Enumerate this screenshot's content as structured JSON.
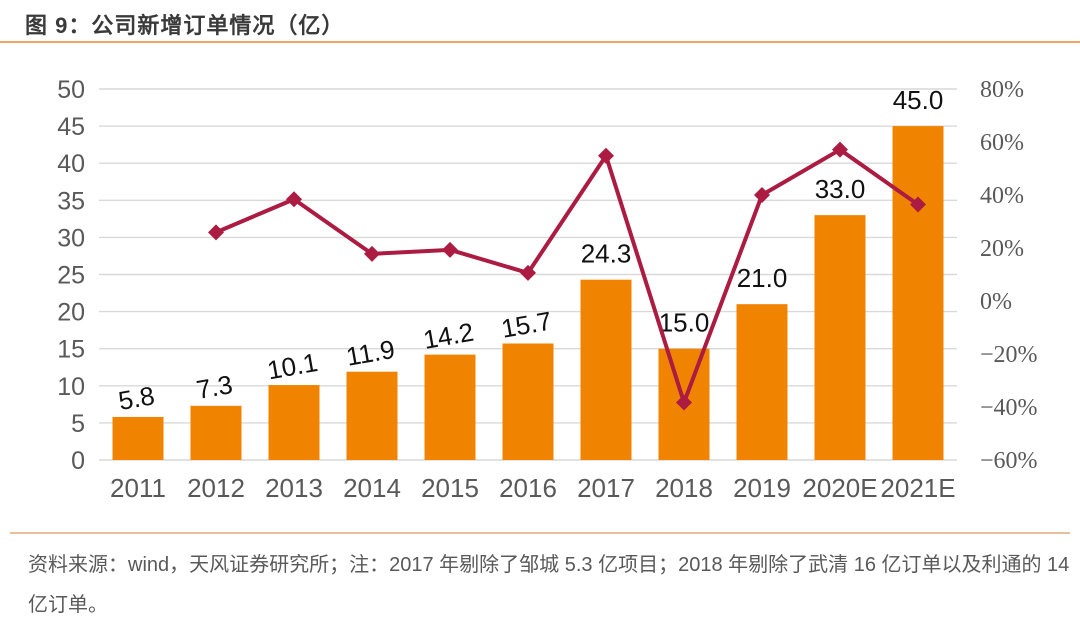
{
  "header": {
    "title": "图 9：公司新增订单情况（亿）"
  },
  "footer": {
    "line1": "资料来源：wind，天风证券研究所；注：2017 年剔除了邹城 5.3 亿项目；2018 年剔除了武清 16 亿订单以及利通的 14",
    "line2": "亿订单。"
  },
  "chart_data": {
    "type": "bar",
    "title": "图 9：公司新增订单情况（亿）",
    "categories": [
      "2011",
      "2012",
      "2013",
      "2014",
      "2015",
      "2016",
      "2017",
      "2018",
      "2019",
      "2020E",
      "2021E"
    ],
    "series": [
      {
        "type": "bar",
        "axis": "left",
        "values": [
          5.8,
          7.3,
          10.1,
          11.9,
          14.2,
          15.7,
          24.3,
          15.0,
          21.0,
          33.0,
          45.0
        ],
        "color": "#F08300"
      },
      {
        "type": "line",
        "axis": "right",
        "values": [
          null,
          25.9,
          38.4,
          17.8,
          19.3,
          10.6,
          54.8,
          -38.3,
          40.0,
          57.1,
          36.4
        ],
        "color": "#AC1B41"
      }
    ],
    "left_axis": {
      "min": 0,
      "max": 50,
      "step": 5,
      "labels": [
        "0",
        "5",
        "10",
        "15",
        "20",
        "25",
        "30",
        "35",
        "40",
        "45",
        "50"
      ]
    },
    "right_axis": {
      "min": -60,
      "max": 80,
      "step": 20,
      "labels": [
        "80%",
        "60%",
        "40%",
        "20%",
        "0%",
        "−20%",
        "−40%",
        "−60%"
      ]
    },
    "grid": true,
    "legend": "none",
    "colors": {
      "bar": "#F08300",
      "line": "#AC1B41",
      "grid": "#D9D9D9",
      "axis_text": "#595959",
      "value_label": "#111111",
      "title_rule": "#F2A65F",
      "footer_rule": "#E6C09A"
    }
  }
}
